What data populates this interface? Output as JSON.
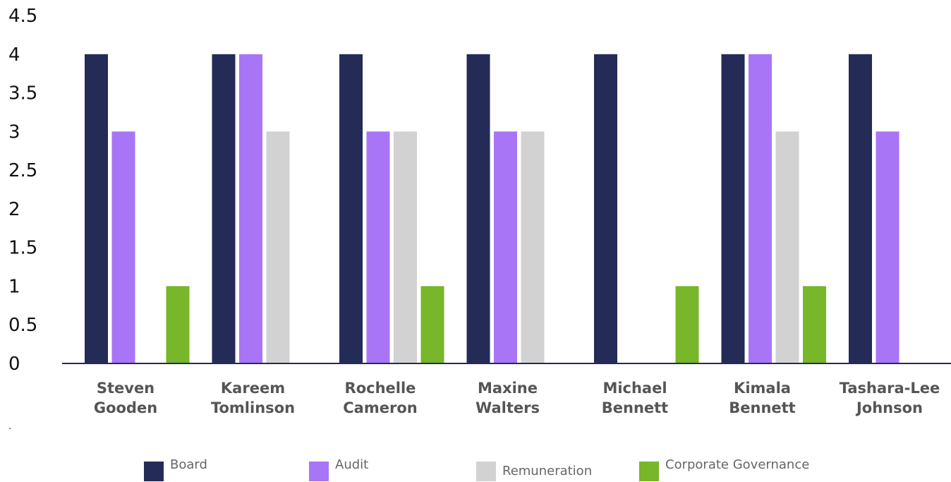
{
  "chart_data": {
    "type": "bar",
    "title": "",
    "xlabel": "",
    "ylabel": "",
    "ylim": [
      0,
      4.5
    ],
    "yticks": [
      "0",
      "0.5",
      "1",
      "1.5",
      "2",
      "2.5",
      "3",
      "3.5",
      "4",
      "4.5"
    ],
    "grid": false,
    "legend_position": "bottom",
    "categories": [
      [
        "Steven",
        "Gooden"
      ],
      [
        "Kareem",
        "Tomlinson"
      ],
      [
        "Rochelle",
        "Cameron"
      ],
      [
        "Maxine",
        "Walters"
      ],
      [
        "Michael",
        "Bennett"
      ],
      [
        "Kimala",
        "Bennett"
      ],
      [
        "Tashara-Lee",
        "Johnson"
      ]
    ],
    "series": [
      {
        "name": "Board",
        "color": "#232b56",
        "values": [
          4,
          4,
          4,
          4,
          4,
          4,
          4
        ]
      },
      {
        "name": "Audit",
        "color": "#a875f7",
        "values": [
          3,
          4,
          3,
          3,
          0,
          4,
          3
        ]
      },
      {
        "name": "Remuneration",
        "color": "#d2d2d2",
        "values": [
          0,
          3,
          3,
          3,
          0,
          3,
          0
        ]
      },
      {
        "name": "Corporate Governance",
        "color": "#78b62a",
        "values": [
          1,
          0,
          1,
          0,
          1,
          1,
          0
        ]
      }
    ],
    "footnote": "."
  }
}
